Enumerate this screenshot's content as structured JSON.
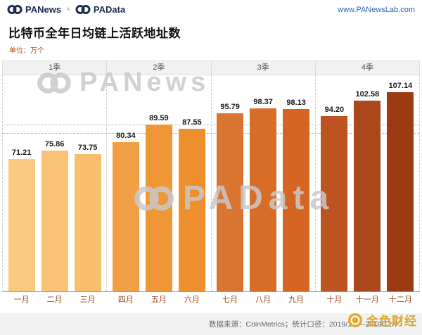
{
  "header": {
    "brand_left": "PANews",
    "separator": "×",
    "brand_right": "PAData",
    "website": "www.PANewsLab.com"
  },
  "title": "比特币全年日均链上活跃地址数",
  "unit_label": "单位：万个",
  "chart_data": {
    "type": "bar",
    "title": "比特币全年日均链上活跃地址数",
    "unit": "万个",
    "quarters": [
      "1季",
      "2季",
      "3季",
      "4季"
    ],
    "categories": [
      "一月",
      "二月",
      "三月",
      "四月",
      "五月",
      "六月",
      "七月",
      "八月",
      "九月",
      "十月",
      "十一月",
      "十二月"
    ],
    "values": [
      71.21,
      75.86,
      73.75,
      80.34,
      89.59,
      87.55,
      95.79,
      98.37,
      98.13,
      94.2,
      102.58,
      107.14
    ],
    "value_labels": [
      "71.21",
      "75.86",
      "73.75",
      "80.34",
      "89.59",
      "87.55",
      "95.79",
      "98.37",
      "98.13",
      "94.20",
      "102.58",
      "107.14"
    ],
    "bar_colors": [
      "#F9C981",
      "#F8C377",
      "#F7BE6D",
      "#F19F44",
      "#EF9737",
      "#ED8F2C",
      "#DA7531",
      "#D76D29",
      "#D46522",
      "#BE5322",
      "#AC461B",
      "#9C3A14"
    ],
    "reference_lines": [
      89.5,
      85
    ],
    "ylim": [
      0,
      116
    ],
    "grid": "dashed vertical quarter separators, dashed horizontal reference lines",
    "legend_position": "none"
  },
  "watermarks": {
    "top": "PANews",
    "middle": "PAData"
  },
  "footer": {
    "source": "数据来源：CoinMetrics；统计口径：2019/1/1—2019/12/7"
  },
  "jinse": {
    "label": "金色财经"
  },
  "colors": {
    "brand_navy": "#1d2b4f",
    "link_blue": "#2e62b8",
    "unit_orange": "#b4541f",
    "month_label": "#9a4620",
    "gold": "#d9a62e",
    "footer_bg": "#f2f2f2"
  }
}
